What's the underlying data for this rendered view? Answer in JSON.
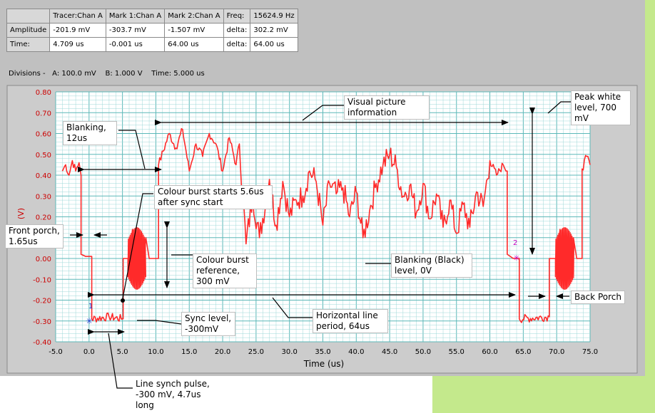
{
  "readout": {
    "header": [
      "",
      "Tracer:Chan A",
      "Mark 1:Chan A",
      "Mark 2:Chan A",
      "Freq:",
      "15624.9 Hz"
    ],
    "rows": [
      {
        "label": "Amplitude",
        "tracer": "-201.9 mV",
        "mark1": "-303.7 mV",
        "mark2": "-1.507 mV",
        "delta": "delta:",
        "delta_value": "302.2 mV"
      },
      {
        "label": "Time:",
        "tracer": "4.709 us",
        "mark1": "-0.001 us",
        "mark2": "64.00 us",
        "delta": "delta:",
        "delta_value": "64.00 us"
      }
    ]
  },
  "divisions": {
    "prefix": "Divisions -",
    "a": "A: 100.0 mV",
    "b": "B: 1.000 V",
    "time": "Time: 5.000 us"
  },
  "markers": {
    "m1": "1",
    "m2": "2"
  },
  "chart_data": {
    "type": "line",
    "xlabel": "Time (us)",
    "ylabel": "(V)",
    "xlim": [
      -5,
      75
    ],
    "ylim": [
      -0.4,
      0.8
    ],
    "xticks": [
      "-5.0",
      "0.0",
      "5.0",
      "10.0",
      "15.0",
      "20.0",
      "25.0",
      "30.0",
      "35.0",
      "40.0",
      "45.0",
      "50.0",
      "55.0",
      "60.0",
      "65.0",
      "70.0",
      "75.0"
    ],
    "yticks": [
      "0.80",
      "0.70",
      "0.60",
      "0.50",
      "0.40",
      "0.30",
      "0.20",
      "0.10",
      "0.00",
      "-0.10",
      "-0.20",
      "-0.30",
      "-0.40"
    ],
    "grid": true,
    "colors": {
      "trace": "#ff2a2a",
      "grid": "#9ed8d8",
      "grid_major": "#5cb8b8",
      "tick_label": "#cc0000",
      "background": "#ffffff"
    },
    "series": [
      {
        "x": [
          -4,
          -3.5,
          -3,
          -2.5,
          -2,
          -1.5,
          -1.2,
          -1.2,
          -0.5,
          0.4,
          0.4,
          3,
          5,
          5.1,
          5.1,
          6,
          6.5,
          7,
          7.5,
          8,
          8.5,
          9,
          9.5,
          10,
          10.4,
          10.4,
          12,
          13,
          14,
          15,
          16,
          17,
          18,
          19,
          20,
          21,
          22,
          22.5,
          23.5,
          24.5,
          25.5,
          27,
          28,
          29,
          30,
          31,
          32,
          33,
          34,
          35,
          36,
          37,
          38,
          39,
          40,
          41,
          42,
          43,
          44,
          45,
          46,
          47,
          48,
          49,
          50,
          51,
          52,
          53,
          54,
          55,
          56,
          57,
          58,
          59,
          60,
          61,
          62,
          62.6,
          62.6,
          63.5,
          64.4,
          64.4,
          68.9,
          68.9,
          69.5,
          70,
          70.5,
          71,
          71.5,
          72,
          72.5,
          73,
          73.5,
          73.8,
          73.8,
          74.5,
          75
        ],
        "y": [
          0.42,
          0.45,
          0.4,
          0.47,
          0.42,
          0.46,
          0.4,
          0.02,
          0.01,
          0.01,
          -0.29,
          -0.28,
          -0.29,
          -0.29,
          0.0,
          0.0,
          0.14,
          -0.12,
          0.12,
          -0.1,
          0.1,
          0.0,
          0.0,
          0.0,
          0.0,
          0.45,
          0.6,
          0.53,
          0.62,
          0.42,
          0.55,
          0.49,
          0.6,
          0.55,
          0.42,
          0.58,
          0.45,
          0.55,
          0.07,
          0.3,
          0.1,
          0.38,
          0.16,
          0.37,
          0.2,
          0.28,
          0.3,
          0.42,
          0.37,
          0.16,
          0.36,
          0.31,
          0.34,
          0.2,
          0.32,
          0.1,
          0.23,
          0.36,
          0.45,
          0.5,
          0.44,
          0.3,
          0.35,
          0.22,
          0.36,
          0.19,
          0.31,
          0.15,
          0.28,
          0.12,
          0.26,
          0.15,
          0.32,
          0.25,
          0.47,
          0.4,
          0.45,
          0.42,
          0.02,
          0.0,
          0.0,
          -0.29,
          -0.28,
          -0.0,
          0.0,
          0.0,
          0.14,
          -0.12,
          0.12,
          -0.1,
          0.1,
          0.0,
          0.0,
          0.0,
          0.43,
          0.49,
          0.45
        ]
      }
    ]
  },
  "annotations": {
    "visual_picture": "Visual picture information",
    "peak_white": "Peak white level, 700 mV",
    "blanking_12": "Blanking, 12us",
    "colour_burst_starts": "Colour burst starts 5.6us after sync start",
    "front_porch": "Front porch, 1.65us",
    "colour_burst_ref": "Colour burst reference, 300 mV",
    "blanking_black": "Blanking (Black) level, 0V",
    "back_porch": "Back Porch",
    "sync_level": "Sync level, -300mV",
    "horizontal_line": "Horizontal line period, 64us",
    "line_synch": "Line synch pulse, -300 mV, 4.7us long"
  }
}
